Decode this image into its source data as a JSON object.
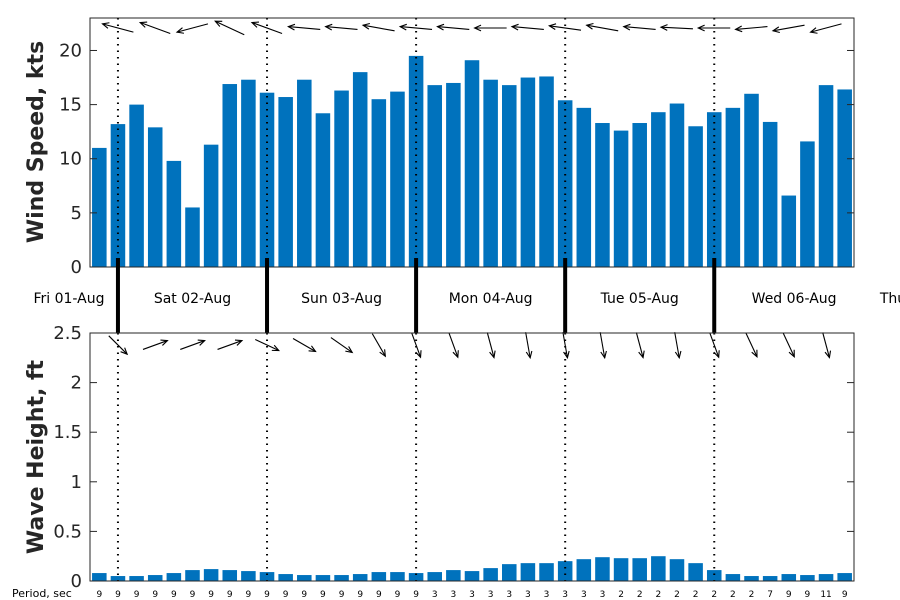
{
  "chart_data": [
    {
      "type": "bar",
      "ylabel": "Wind Speed, kts",
      "ylim": [
        0,
        23
      ],
      "yticks": [
        0,
        5,
        10,
        15,
        20
      ],
      "color": "#0072BD",
      "values": [
        11.0,
        13.2,
        15.0,
        12.9,
        9.8,
        5.5,
        11.3,
        16.9,
        17.3,
        16.1,
        15.7,
        17.3,
        14.2,
        16.3,
        18.0,
        15.5,
        16.2,
        19.5,
        16.8,
        17.0,
        19.1,
        17.3,
        16.8,
        17.5,
        17.6,
        15.4,
        14.7,
        13.3,
        12.6,
        13.3,
        14.3,
        15.1,
        13.0,
        14.3,
        14.7,
        16.0,
        13.4,
        6.6,
        11.6,
        16.8,
        16.4
      ],
      "direction_arrows": "arrows along top of panel, pointing mostly left (easterly winds)"
    },
    {
      "type": "bar",
      "ylabel": "Wave Height, ft",
      "ylim": [
        0,
        2.5
      ],
      "yticks": [
        "0",
        "0.5",
        "1",
        "1.5",
        "2",
        "2.5"
      ],
      "color": "#0072BD",
      "values": [
        0.08,
        0.05,
        0.05,
        0.06,
        0.08,
        0.11,
        0.12,
        0.11,
        0.1,
        0.09,
        0.07,
        0.06,
        0.06,
        0.06,
        0.07,
        0.09,
        0.09,
        0.08,
        0.09,
        0.11,
        0.1,
        0.13,
        0.17,
        0.18,
        0.18,
        0.2,
        0.22,
        0.24,
        0.23,
        0.23,
        0.25,
        0.22,
        0.18,
        0.11,
        0.07,
        0.05,
        0.05,
        0.07,
        0.06,
        0.07,
        0.08
      ],
      "period_title": "Period, sec",
      "periods": [
        "9",
        "9",
        "9",
        "9",
        "9",
        "9",
        "9",
        "9",
        "9",
        "9",
        "9",
        "9",
        "9",
        "9",
        "9",
        "9",
        "9",
        "9",
        "3",
        "3",
        "3",
        "3",
        "3",
        "3",
        "3",
        "3",
        "3",
        "3",
        "2",
        "2",
        "2",
        "2",
        "2",
        "2",
        "2",
        "2",
        "7",
        "9",
        "9",
        "11",
        "9"
      ]
    }
  ],
  "day_labels": [
    "Fri 01-Aug",
    "Sat 02-Aug",
    "Sun 03-Aug",
    "Mon 04-Aug",
    "Tue 05-Aug",
    "Wed 06-Aug",
    "Thu"
  ]
}
